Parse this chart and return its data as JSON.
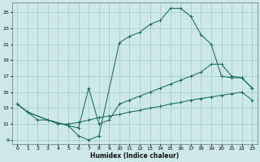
{
  "xlabel": "Humidex (Indice chaleur)",
  "bg_color": "#cce8e8",
  "grid_color": "#aacccc",
  "line_color": "#1a6b5a",
  "xlim": [
    -0.5,
    23.5
  ],
  "ylim": [
    8.5,
    26.2
  ],
  "xticks": [
    0,
    1,
    2,
    3,
    4,
    5,
    6,
    7,
    8,
    9,
    10,
    11,
    12,
    13,
    14,
    15,
    16,
    17,
    18,
    19,
    20,
    21,
    22,
    23
  ],
  "yticks": [
    9,
    11,
    13,
    15,
    17,
    19,
    21,
    23,
    25
  ],
  "line1_x": [
    0,
    1,
    2,
    3,
    4,
    5,
    6,
    7,
    8,
    9,
    10,
    11,
    12,
    13,
    14,
    15,
    16,
    17,
    18,
    19,
    20,
    21,
    22,
    23
  ],
  "line1_y": [
    13.5,
    12.5,
    11.5,
    11.5,
    11.0,
    11.0,
    11.2,
    11.5,
    11.8,
    12.0,
    12.2,
    12.5,
    12.7,
    13.0,
    13.2,
    13.5,
    13.7,
    14.0,
    14.2,
    14.4,
    14.6,
    14.8,
    15.0,
    14.0
  ],
  "line2_x": [
    0,
    1,
    3,
    5,
    6,
    7,
    8,
    10,
    11,
    12,
    13,
    14,
    15,
    16,
    17,
    18,
    19,
    20,
    21,
    22,
    23
  ],
  "line2_y": [
    13.5,
    12.5,
    11.5,
    10.8,
    9.5,
    9.0,
    9.5,
    21.2,
    22.0,
    22.5,
    23.5,
    24.0,
    25.5,
    25.5,
    24.5,
    22.2,
    21.0,
    17.0,
    16.8,
    16.8,
    15.5
  ],
  "line3_x": [
    0,
    1,
    3,
    5,
    6,
    7,
    8,
    9,
    10,
    11,
    12,
    13,
    14,
    15,
    16,
    17,
    18,
    19,
    20,
    21,
    22,
    23
  ],
  "line3_y": [
    13.5,
    12.5,
    11.5,
    10.8,
    10.5,
    15.5,
    11.0,
    11.5,
    13.5,
    14.0,
    14.5,
    15.0,
    15.5,
    16.0,
    16.5,
    17.0,
    17.5,
    18.5,
    18.5,
    17.0,
    16.8,
    15.5
  ]
}
